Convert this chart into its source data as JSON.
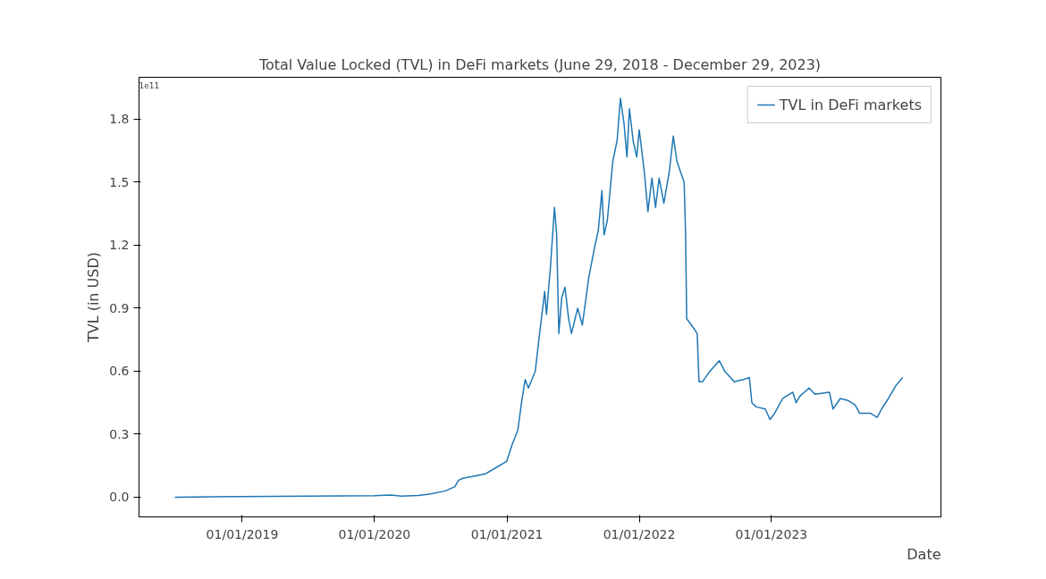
{
  "chart_data": {
    "type": "line",
    "title": "Total Value Locked (TVL) in DeFi markets (June 29, 2018 - December 29, 2023)",
    "xlabel": "Date",
    "ylabel": "TVL (in USD)",
    "annotations": [
      "1e11"
    ],
    "xlim": [
      "2018-03-22",
      "2024-04-13"
    ],
    "xticks": [
      {
        "value": "2019-01-01",
        "label": "01/01/2019"
      },
      {
        "value": "2020-01-01",
        "label": "01/01/2020"
      },
      {
        "value": "2021-01-01",
        "label": "01/01/2021"
      },
      {
        "value": "2022-01-01",
        "label": "01/01/2022"
      },
      {
        "value": "2023-01-01",
        "label": "01/01/2023"
      }
    ],
    "ylim": [
      -0.094,
      2.0
    ],
    "yticks": [
      {
        "value": 0,
        "label": "0.0"
      },
      0.3,
      0.6,
      0.9,
      1.2,
      1.5,
      1.8
    ],
    "grid": false,
    "legend": "top right",
    "marker": "none",
    "line_style": "solid",
    "series": [
      {
        "name": "TVL in DeFi markets",
        "color": "#1f77b4",
        "x": [
          "2018-06-29",
          "2019-01-01",
          "2019-07-01",
          "2020-01-01",
          "2020-02-15",
          "2020-03-15",
          "2020-05-01",
          "2020-06-01",
          "2020-07-15",
          "2020-08-10",
          "2020-08-20",
          "2020-09-01",
          "2020-10-01",
          "2020-11-01",
          "2020-12-01",
          "2020-12-31",
          "2021-01-15",
          "2021-01-31",
          "2021-02-10",
          "2021-02-20",
          "2021-03-01",
          "2021-03-20",
          "2021-04-01",
          "2021-04-15",
          "2021-04-20",
          "2021-05-01",
          "2021-05-12",
          "2021-05-18",
          "2021-05-24",
          "2021-06-01",
          "2021-06-10",
          "2021-06-20",
          "2021-06-28",
          "2021-07-15",
          "2021-07-28",
          "2021-08-15",
          "2021-09-01",
          "2021-09-10",
          "2021-09-20",
          "2021-09-26",
          "2021-10-05",
          "2021-10-20",
          "2021-11-01",
          "2021-11-10",
          "2021-11-20",
          "2021-11-28",
          "2021-12-05",
          "2021-12-15",
          "2021-12-25",
          "2022-01-01",
          "2022-01-15",
          "2022-01-25",
          "2022-02-05",
          "2022-02-15",
          "2022-02-25",
          "2022-03-10",
          "2022-03-25",
          "2022-04-05",
          "2022-04-15",
          "2022-04-25",
          "2022-05-05",
          "2022-05-09",
          "2022-05-12",
          "2022-05-25",
          "2022-06-10",
          "2022-06-15",
          "2022-06-25",
          "2022-07-15",
          "2022-08-10",
          "2022-08-25",
          "2022-09-10",
          "2022-09-20",
          "2022-10-15",
          "2022-11-01",
          "2022-11-08",
          "2022-11-20",
          "2022-12-15",
          "2022-12-28",
          "2023-01-10",
          "2023-02-01",
          "2023-03-01",
          "2023-03-10",
          "2023-03-20",
          "2023-04-15",
          "2023-05-01",
          "2023-06-10",
          "2023-06-20",
          "2023-07-10",
          "2023-08-01",
          "2023-08-20",
          "2023-09-01",
          "2023-10-01",
          "2023-10-20",
          "2023-11-01",
          "2023-11-20",
          "2023-12-10",
          "2023-12-29"
        ],
        "values": [
          0,
          0.003,
          0.005,
          0.007,
          0.01,
          0.005,
          0.008,
          0.015,
          0.03,
          0.05,
          0.08,
          0.09,
          0.1,
          0.11,
          0.14,
          0.17,
          0.25,
          0.32,
          0.45,
          0.56,
          0.52,
          0.6,
          0.78,
          0.98,
          0.87,
          1.1,
          1.38,
          1.25,
          0.78,
          0.95,
          1.0,
          0.85,
          0.78,
          0.9,
          0.82,
          1.05,
          1.2,
          1.27,
          1.46,
          1.25,
          1.32,
          1.6,
          1.7,
          1.9,
          1.78,
          1.62,
          1.85,
          1.7,
          1.62,
          1.75,
          1.55,
          1.36,
          1.52,
          1.38,
          1.52,
          1.4,
          1.55,
          1.72,
          1.6,
          1.55,
          1.5,
          1.25,
          0.85,
          0.82,
          0.78,
          0.55,
          0.55,
          0.6,
          0.65,
          0.6,
          0.57,
          0.55,
          0.56,
          0.57,
          0.45,
          0.43,
          0.42,
          0.37,
          0.4,
          0.47,
          0.5,
          0.45,
          0.48,
          0.52,
          0.49,
          0.5,
          0.42,
          0.47,
          0.46,
          0.44,
          0.4,
          0.4,
          0.38,
          0.42,
          0.47,
          0.53,
          0.57
        ]
      }
    ]
  }
}
